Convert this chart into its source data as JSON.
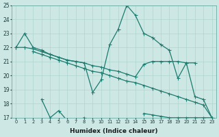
{
  "xlabel": "Humidex (Indice chaleur)",
  "x": [
    0,
    1,
    2,
    3,
    4,
    5,
    6,
    7,
    8,
    9,
    10,
    11,
    12,
    13,
    14,
    15,
    16,
    17,
    18,
    19,
    20,
    21,
    22,
    23
  ],
  "lineA": [
    22,
    23,
    22,
    21.8,
    21.5,
    21.3,
    21.1,
    21.0,
    20.9,
    18.8,
    19.7,
    22.2,
    23.3,
    25.0,
    24.3,
    23.0,
    22.7,
    22.2,
    21.8,
    19.8,
    20.9,
    18.5,
    18.3,
    17.0
  ],
  "lineB": [
    22,
    22,
    21.9,
    21.7,
    21.5,
    21.3,
    21.1,
    21.0,
    20.9,
    20.7,
    20.6,
    20.4,
    20.3,
    20.1,
    19.9,
    20.8,
    21.0,
    21.0,
    21.0,
    21.0,
    20.9,
    20.9,
    null,
    null
  ],
  "lineC": [
    null,
    null,
    21.7,
    21.5,
    21.3,
    21.1,
    20.9,
    20.7,
    20.5,
    20.3,
    20.2,
    20.0,
    19.8,
    19.6,
    19.5,
    19.3,
    19.1,
    18.9,
    18.7,
    18.5,
    18.3,
    18.1,
    17.9,
    17.0
  ],
  "lineD": [
    null,
    null,
    null,
    18.3,
    17.0,
    17.5,
    16.8,
    16.8,
    17.0,
    16.5,
    null,
    null,
    null,
    null,
    null,
    17.3,
    17.2,
    17.1,
    17.0,
    17.0,
    17.0,
    17.0,
    17.0,
    17.0
  ],
  "color": "#1a7a6e",
  "bg_color": "#cde8e4",
  "grid_color": "#afd4cf",
  "ylim": [
    17,
    25
  ],
  "xlim": [
    -0.5,
    23.5
  ]
}
